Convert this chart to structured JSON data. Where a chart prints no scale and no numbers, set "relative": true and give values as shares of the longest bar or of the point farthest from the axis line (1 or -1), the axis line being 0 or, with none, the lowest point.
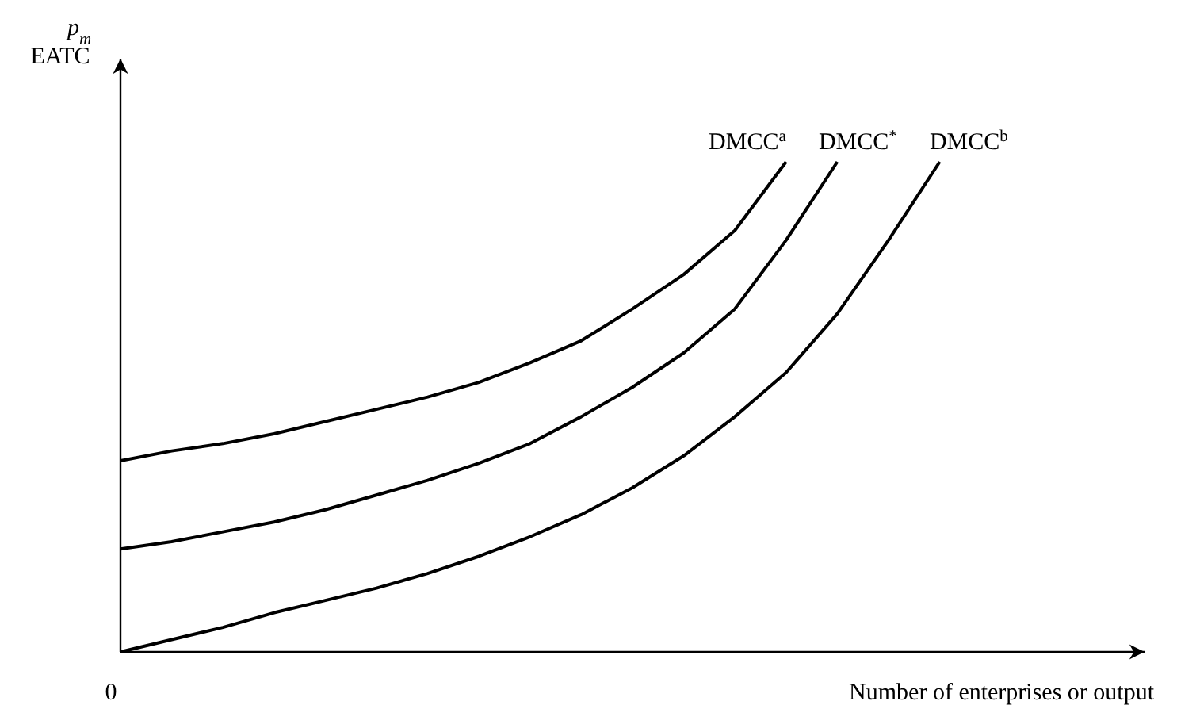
{
  "chart_data": {
    "type": "line",
    "relative": true,
    "xlabel": "Number of enterprises or output",
    "ylabel": "p$_{m}$\nEATC",
    "annotations": [
      "0"
    ],
    "categories": [
      null,
      null,
      null,
      null,
      null,
      null,
      null,
      null,
      null,
      null,
      null,
      null,
      null,
      null,
      null,
      null,
      null,
      null,
      null,
      null,
      null
    ],
    "marker": "none",
    "line_style": "solid",
    "series": [
      {
        "name": "DMCC$^{a}$",
        "color": "#000000",
        "values": [
          0.39,
          0.41,
          0.425,
          0.445,
          0.47,
          0.495,
          0.52,
          0.55,
          0.59,
          0.635,
          0.7,
          0.77,
          0.86,
          1.0,
          null,
          null,
          null,
          null,
          null,
          null,
          null
        ]
      },
      {
        "name": "DMCC$^{*}$",
        "color": "#000000",
        "values": [
          0.21,
          0.225,
          0.245,
          0.265,
          0.29,
          0.32,
          0.35,
          0.385,
          0.425,
          0.48,
          0.54,
          0.61,
          0.7,
          0.84,
          1.0,
          null,
          null,
          null,
          null,
          null,
          null
        ]
      },
      {
        "name": "DMCC$^{b}$",
        "color": "#000000",
        "values": [
          0,
          0.025,
          0.05,
          0.08,
          0.105,
          0.13,
          0.16,
          0.195,
          0.235,
          0.28,
          0.335,
          0.4,
          0.48,
          0.57,
          0.69,
          0.84,
          1.0,
          null,
          null,
          null,
          null
        ]
      }
    ]
  }
}
